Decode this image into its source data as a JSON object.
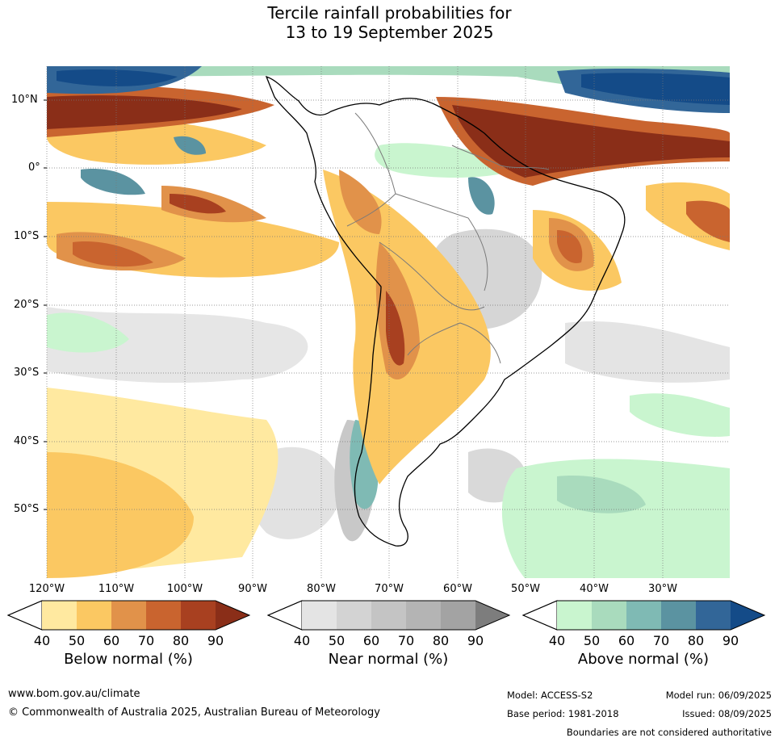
{
  "title": {
    "line1": "Tercile rainfall probabilities for",
    "line2": "13 to 19 September 2025"
  },
  "map": {
    "latitude_labels": [
      "10°N",
      "0°",
      "10°S",
      "20°S",
      "30°S",
      "40°S",
      "50°S"
    ],
    "longitude_labels": [
      "120°W",
      "110°W",
      "100°W",
      "90°W",
      "80°W",
      "70°W",
      "60°W",
      "50°W",
      "40°W",
      "30°W"
    ]
  },
  "colorbars": [
    {
      "label": "Below normal (%)",
      "ticks": [
        "40",
        "50",
        "60",
        "70",
        "80",
        "90"
      ],
      "colors": [
        "#ffe9a0",
        "#fbc862",
        "#e1924a",
        "#c9642f",
        "#a84020",
        "#8a2e18"
      ]
    },
    {
      "label": "Near normal (%)",
      "ticks": [
        "40",
        "50",
        "60",
        "70",
        "80",
        "90"
      ],
      "colors": [
        "#e4e4e4",
        "#d3d3d3",
        "#c4c4c4",
        "#b4b4b4",
        "#a3a3a3",
        "#7d7d7d"
      ]
    },
    {
      "label": "Above normal (%)",
      "ticks": [
        "40",
        "50",
        "60",
        "70",
        "80",
        "90"
      ],
      "colors": [
        "#c9f5cf",
        "#a9dbbd",
        "#7fbab4",
        "#5b93a1",
        "#326698",
        "#144b88"
      ]
    }
  ],
  "footer": {
    "website": "www.bom.gov.au/climate",
    "copyright": "© Commonwealth of Australia 2025, Australian Bureau of Meteorology",
    "model": "Model: ACCESS-S2",
    "base_period": "Base period: 1981-2018",
    "model_run": "Model run: 06/09/2025",
    "issued": "Issued: 08/09/2025",
    "boundaries_note": "Boundaries are not considered authoritative"
  }
}
